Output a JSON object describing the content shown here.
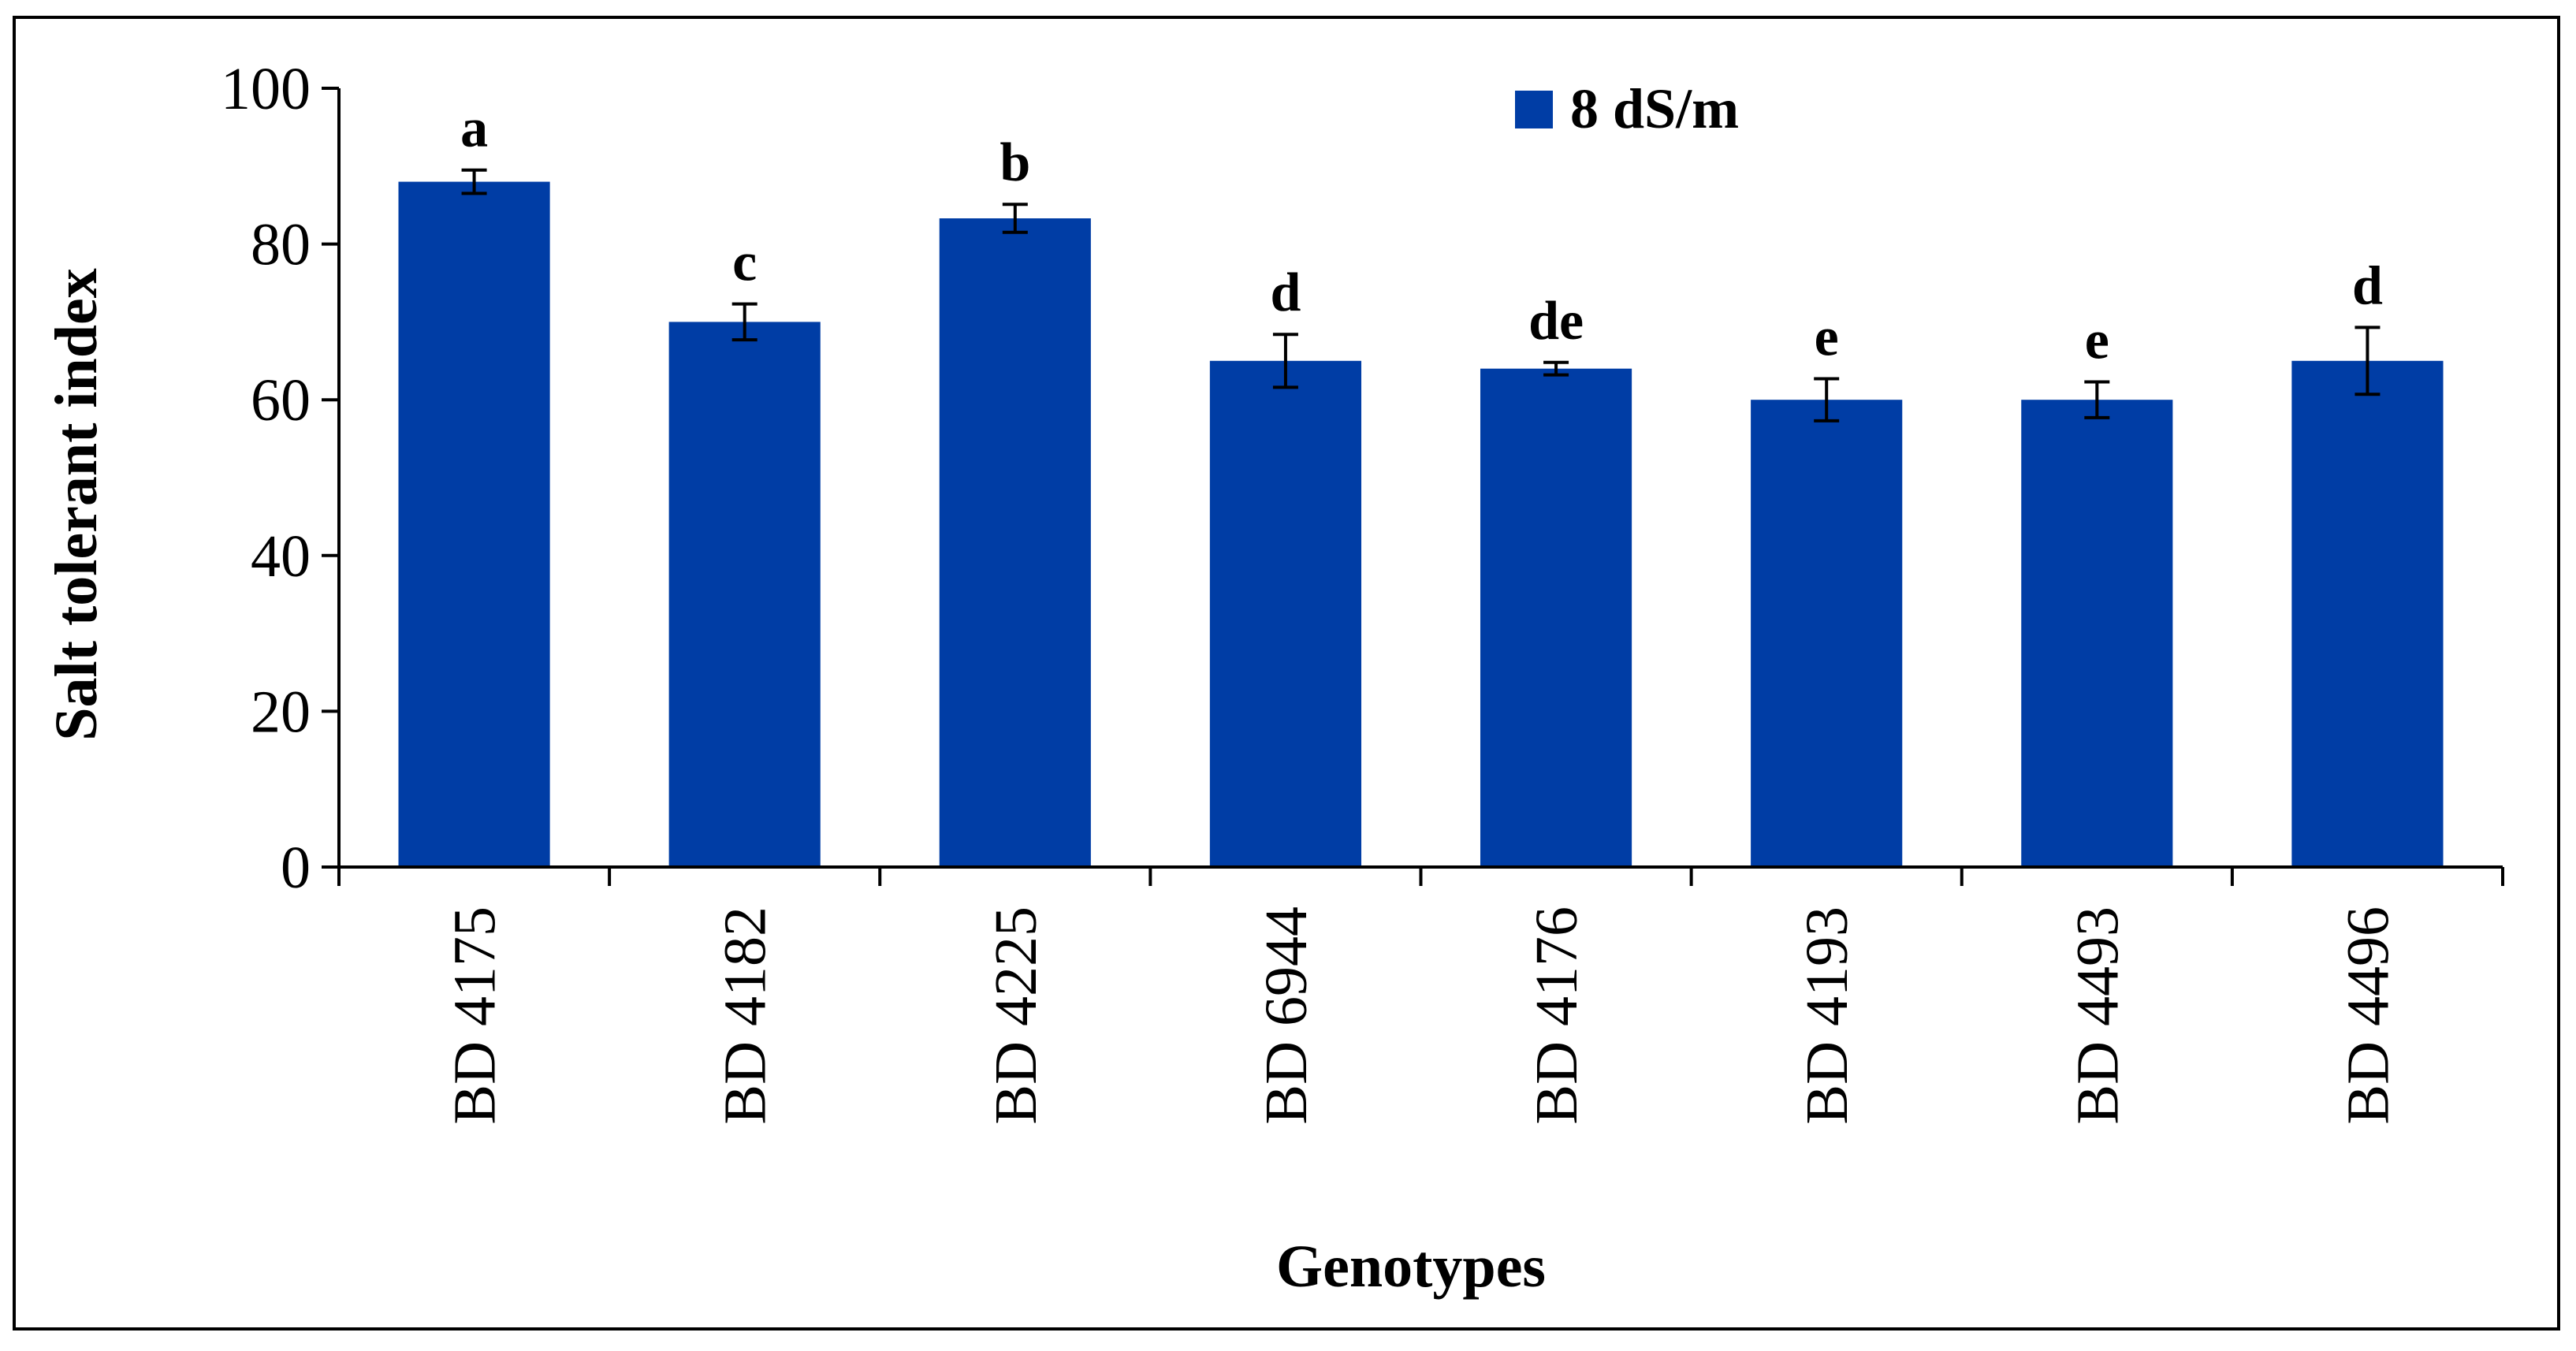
{
  "chart_data": {
    "type": "bar",
    "categories": [
      "BD 4175",
      "BD 4182",
      "BD 4225",
      "BD 6944",
      "BD 4176",
      "BD 4193",
      "BD 4493",
      "BD 4496"
    ],
    "series": [
      {
        "name": "8 dS/m",
        "values": [
          88,
          70,
          83.3,
          65,
          64,
          60,
          60,
          65
        ],
        "errors": [
          1.5,
          2.3,
          1.8,
          3.4,
          0.8,
          2.7,
          2.3,
          4.3
        ],
        "significance": [
          "a",
          "c",
          "b",
          "d",
          "de",
          "e",
          "e",
          "d"
        ],
        "color": "#003DA5"
      }
    ],
    "xlabel": "Genotypes",
    "ylabel": "Salt tolerant index",
    "ylim": [
      0,
      100
    ],
    "yticks": [
      0,
      20,
      40,
      60,
      80,
      100
    ],
    "grid": false,
    "legend": "top-center"
  }
}
